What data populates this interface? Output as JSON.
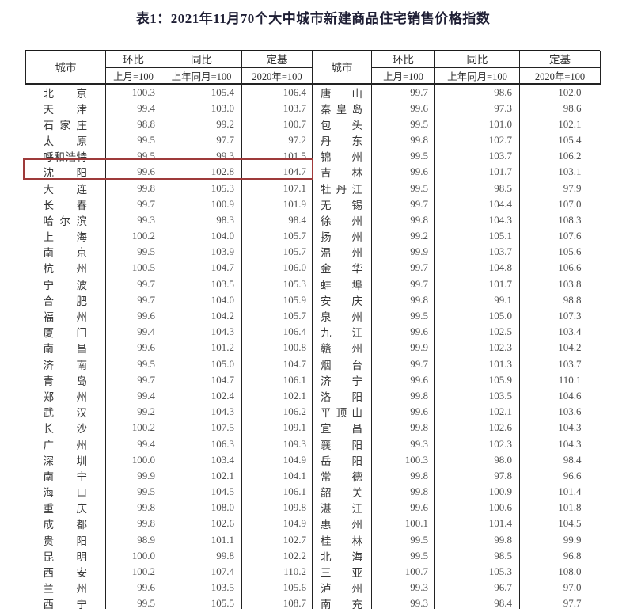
{
  "title": "表1：2021年11月70个大中城市新建商品住宅销售价格指数",
  "table": {
    "columns": {
      "city": "城市",
      "mom": "环比",
      "mom_sub": "上月=100",
      "yoy": "同比",
      "yoy_sub": "上年同月=100",
      "base": "定基",
      "base_sub": "2020年=100"
    },
    "left_rows": [
      [
        "北京",
        "100.3",
        "105.4",
        "106.4"
      ],
      [
        "天津",
        "99.4",
        "103.0",
        "103.7"
      ],
      [
        "石家庄",
        "98.8",
        "99.2",
        "100.7"
      ],
      [
        "太原",
        "99.5",
        "97.7",
        "97.2"
      ],
      [
        "呼和浩特",
        "99.5",
        "99.3",
        "101.5"
      ],
      [
        "沈阳",
        "99.6",
        "102.8",
        "104.7"
      ],
      [
        "大连",
        "99.8",
        "105.3",
        "107.1"
      ],
      [
        "长春",
        "99.7",
        "100.9",
        "101.9"
      ],
      [
        "哈尔滨",
        "99.3",
        "98.3",
        "98.4"
      ],
      [
        "上海",
        "100.2",
        "104.0",
        "105.7"
      ],
      [
        "南京",
        "99.5",
        "103.9",
        "105.7"
      ],
      [
        "杭州",
        "100.5",
        "104.7",
        "106.0"
      ],
      [
        "宁波",
        "99.7",
        "103.5",
        "105.3"
      ],
      [
        "合肥",
        "99.7",
        "104.0",
        "105.9"
      ],
      [
        "福州",
        "99.6",
        "104.2",
        "105.7"
      ],
      [
        "厦门",
        "99.4",
        "104.3",
        "106.4"
      ],
      [
        "南昌",
        "99.6",
        "101.2",
        "100.8"
      ],
      [
        "济南",
        "99.5",
        "105.0",
        "104.7"
      ],
      [
        "青岛",
        "99.7",
        "104.7",
        "106.1"
      ],
      [
        "郑州",
        "99.4",
        "102.4",
        "102.1"
      ],
      [
        "武汉",
        "99.2",
        "104.3",
        "106.2"
      ],
      [
        "长沙",
        "100.2",
        "107.5",
        "109.1"
      ],
      [
        "广州",
        "99.4",
        "106.3",
        "109.3"
      ],
      [
        "深圳",
        "100.0",
        "103.4",
        "104.9"
      ],
      [
        "南宁",
        "99.9",
        "102.1",
        "104.1"
      ],
      [
        "海口",
        "99.5",
        "104.5",
        "106.1"
      ],
      [
        "重庆",
        "99.8",
        "108.0",
        "109.8"
      ],
      [
        "成都",
        "99.8",
        "102.6",
        "104.9"
      ],
      [
        "贵阳",
        "98.9",
        "101.1",
        "102.7"
      ],
      [
        "昆明",
        "100.0",
        "99.8",
        "102.2"
      ],
      [
        "西安",
        "100.2",
        "107.4",
        "110.2"
      ],
      [
        "兰州",
        "99.6",
        "103.5",
        "105.6"
      ],
      [
        "西宁",
        "99.5",
        "105.5",
        "108.7"
      ]
    ],
    "right_rows": [
      [
        "唐山",
        "99.7",
        "98.6",
        "102.0"
      ],
      [
        "秦皇岛",
        "99.6",
        "97.3",
        "98.6"
      ],
      [
        "包头",
        "99.5",
        "101.0",
        "102.1"
      ],
      [
        "丹东",
        "99.8",
        "102.7",
        "105.4"
      ],
      [
        "锦州",
        "99.5",
        "103.7",
        "106.2"
      ],
      [
        "吉林",
        "99.6",
        "101.7",
        "103.1"
      ],
      [
        "牡丹江",
        "99.5",
        "98.5",
        "97.9"
      ],
      [
        "无锡",
        "99.7",
        "104.4",
        "107.0"
      ],
      [
        "徐州",
        "99.8",
        "104.3",
        "108.3"
      ],
      [
        "扬州",
        "99.2",
        "105.1",
        "107.6"
      ],
      [
        "温州",
        "99.9",
        "103.7",
        "105.6"
      ],
      [
        "金华",
        "99.7",
        "104.8",
        "106.6"
      ],
      [
        "蚌埠",
        "99.7",
        "101.7",
        "103.8"
      ],
      [
        "安庆",
        "99.8",
        "99.1",
        "98.8"
      ],
      [
        "泉州",
        "99.5",
        "105.0",
        "107.3"
      ],
      [
        "九江",
        "99.6",
        "102.5",
        "103.4"
      ],
      [
        "赣州",
        "99.9",
        "102.3",
        "104.2"
      ],
      [
        "烟台",
        "99.7",
        "101.3",
        "103.7"
      ],
      [
        "济宁",
        "99.6",
        "105.9",
        "110.1"
      ],
      [
        "洛阳",
        "99.8",
        "103.5",
        "104.6"
      ],
      [
        "平顶山",
        "99.6",
        "102.1",
        "103.6"
      ],
      [
        "宜昌",
        "99.8",
        "102.6",
        "104.3"
      ],
      [
        "襄阳",
        "99.3",
        "102.3",
        "104.3"
      ],
      [
        "岳阳",
        "100.3",
        "98.0",
        "98.4"
      ],
      [
        "常德",
        "99.8",
        "97.8",
        "96.6"
      ],
      [
        "韶关",
        "99.8",
        "100.9",
        "101.4"
      ],
      [
        "湛江",
        "99.6",
        "100.6",
        "101.8"
      ],
      [
        "惠州",
        "100.1",
        "101.4",
        "104.5"
      ],
      [
        "桂林",
        "99.5",
        "99.8",
        "99.9"
      ],
      [
        "北海",
        "99.5",
        "98.5",
        "96.8"
      ],
      [
        "三亚",
        "100.7",
        "105.3",
        "108.0"
      ],
      [
        "泸州",
        "99.3",
        "96.7",
        "97.0"
      ],
      [
        "南充",
        "99.3",
        "98.4",
        "97.7"
      ]
    ],
    "highlight": {
      "city": "沈阳",
      "row_index": 5,
      "color": "#9e3a3a"
    }
  }
}
